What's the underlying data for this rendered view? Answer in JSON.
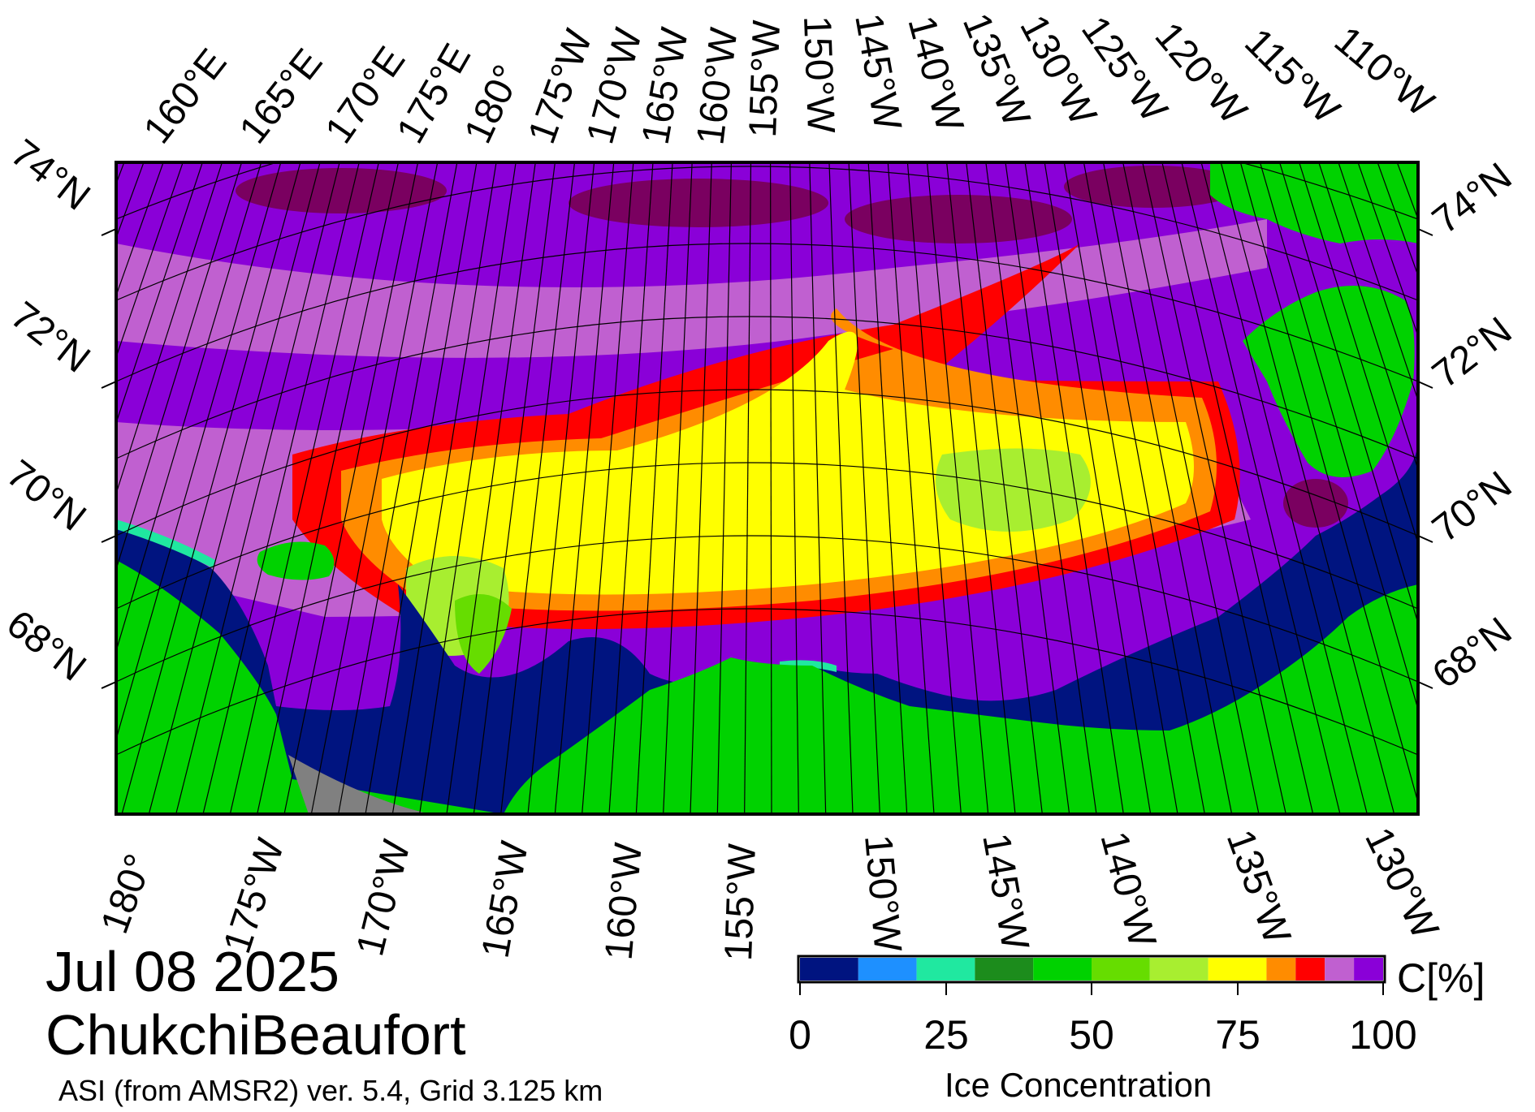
{
  "title": {
    "date": "Jul 08 2025",
    "region": "ChukchiBeaufort",
    "product": "ASI (from AMSR2) ver. 5.4,  Grid 3.125 km"
  },
  "top_longitude_labels": [
    "160°E",
    "165°E",
    "170°E",
    "175°E",
    "180°",
    "175°W",
    "170°W",
    "165°W",
    "160°W",
    "155°W",
    "150°W",
    "145°W",
    "140°W",
    "135°W",
    "130°W",
    "125°W",
    "120°W",
    "115°W",
    "110°W"
  ],
  "bottom_longitude_labels": [
    "180°",
    "175°W",
    "170°W",
    "165°W",
    "160°W",
    "155°W",
    "150°W",
    "145°W",
    "140°W",
    "135°W",
    "130°W"
  ],
  "left_latitude_labels": [
    "74°N",
    "72°N",
    "70°N",
    "68°N"
  ],
  "right_latitude_labels": [
    "74°N",
    "72°N",
    "70°N",
    "68°N"
  ],
  "colorbar": {
    "title": "Ice Concentration",
    "unit": "C[%]",
    "tick_labels": [
      "0",
      "25",
      "50",
      "75",
      "100"
    ],
    "range": [
      0,
      100
    ],
    "bins": [
      {
        "from": 0,
        "to": 10,
        "color": "#001480"
      },
      {
        "from": 10,
        "to": 20,
        "color": "#1e90ff"
      },
      {
        "from": 20,
        "to": 30,
        "color": "#20e8a0"
      },
      {
        "from": 30,
        "to": 40,
        "color": "#1c8c1c"
      },
      {
        "from": 40,
        "to": 50,
        "color": "#00d200"
      },
      {
        "from": 50,
        "to": 60,
        "color": "#66dd00"
      },
      {
        "from": 60,
        "to": 70,
        "color": "#a8ee30"
      },
      {
        "from": 70,
        "to": 80,
        "color": "#ffff00"
      },
      {
        "from": 80,
        "to": 85,
        "color": "#ff8c00"
      },
      {
        "from": 85,
        "to": 90,
        "color": "#ff0000"
      },
      {
        "from": 90,
        "to": 95,
        "color": "#c060d0"
      },
      {
        "from": 95,
        "to": 100,
        "color": "#8a00d8"
      }
    ]
  },
  "map_colors": {
    "land": "#00d200",
    "open_water": "#001480",
    "no_data": "#808080",
    "pack_ice": "#8a00d8",
    "pack_ice_dark": "#7a0060",
    "ice_90_95": "#c060d0",
    "ice_85_90": "#ff0000",
    "ice_80_85": "#ff8c00",
    "ice_70_80": "#ffff00",
    "ice_60_70": "#a8ee30",
    "ice_50_60": "#66dd00",
    "ice_20_30": "#20e8a0"
  }
}
